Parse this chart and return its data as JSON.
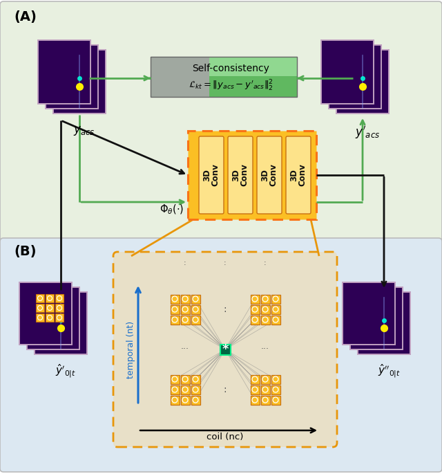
{
  "fig_width": 6.4,
  "fig_height": 6.85,
  "panel_A_bg": "#e8f0e0",
  "panel_B_bg": "#dce8f2",
  "conv_box_bg": "#fbbf24",
  "conv_box_border": "#f97316",
  "arrow_green": "#52aa52",
  "arrow_black": "#111111",
  "arrow_blue": "#1a6fcc",
  "label_A": "(A)",
  "label_B": "(B)",
  "conv_labels": [
    "3D\nConv",
    "3D\nConv",
    "3D\nConv",
    "3D\nConv"
  ],
  "self_consist_title": "Self-consistency",
  "self_consist_formula": "$\\mathcal{L}_{kt} = \\|y_{acs} - y'_{acs}\\|_2^2$",
  "y_acs_label": "$y_{acs}$",
  "y_acs_prime_label": "$y'_{acs}$",
  "phi_label": "$\\Phi_\\theta(\\cdot)$",
  "y_hat_prime_label": "$\\hat{y}'_{0|t}$",
  "y_hat_double_prime_label": "$\\hat{y}''_{0|t}$",
  "temporal_label": "temporal (nt)",
  "coil_label": "coil (nc)",
  "kspace_face_color": "#2d0055",
  "kspace_edge_color": "#c0a0c0",
  "coil_inner_bg": "#e8e0c8",
  "coil_box_border": "#e8960a",
  "tile_fill": "#fbbf24",
  "tile_edge": "#c87010"
}
